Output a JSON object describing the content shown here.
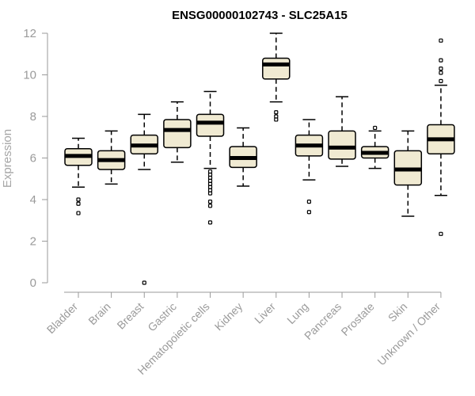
{
  "chart_data": {
    "type": "box",
    "title": "ENSG00000102743 - SLC25A15",
    "xlabel": "",
    "ylabel": "Expression",
    "ylim": [
      0,
      12
    ],
    "yticks": [
      0,
      2,
      4,
      6,
      8,
      10,
      12
    ],
    "grid": false,
    "legend": "none",
    "colors": {
      "box_fill": "#f0ead2",
      "box_stroke": "#000000",
      "axis": "#9a9a9a"
    },
    "categories": [
      "Bladder",
      "Brain",
      "Breast",
      "Gastric",
      "Hematopoietic cells",
      "Kidney",
      "Liver",
      "Lung",
      "Pancreas",
      "Prostate",
      "Skin",
      "Unknown / Other"
    ],
    "boxes": [
      {
        "category": "Bladder",
        "whisker_low": 4.6,
        "q1": 5.65,
        "median": 6.1,
        "q3": 6.45,
        "whisker_high": 6.95,
        "outliers": [
          4.0,
          3.8,
          3.35
        ]
      },
      {
        "category": "Brain",
        "whisker_low": 4.75,
        "q1": 5.45,
        "median": 5.9,
        "q3": 6.35,
        "whisker_high": 7.3,
        "outliers": []
      },
      {
        "category": "Breast",
        "whisker_low": 5.45,
        "q1": 6.2,
        "median": 6.6,
        "q3": 7.1,
        "whisker_high": 8.1,
        "outliers": [
          0.0
        ]
      },
      {
        "category": "Gastric",
        "whisker_low": 5.8,
        "q1": 6.5,
        "median": 7.35,
        "q3": 7.85,
        "whisker_high": 8.7,
        "outliers": []
      },
      {
        "category": "Hematopoietic cells",
        "whisker_low": 5.5,
        "q1": 7.05,
        "median": 7.7,
        "q3": 8.1,
        "whisker_high": 9.2,
        "outliers": [
          5.35,
          5.2,
          5.05,
          4.9,
          4.75,
          4.6,
          4.45,
          4.3,
          3.9,
          3.7,
          2.9
        ]
      },
      {
        "category": "Kidney",
        "whisker_low": 4.65,
        "q1": 5.55,
        "median": 6.0,
        "q3": 6.55,
        "whisker_high": 7.45,
        "outliers": []
      },
      {
        "category": "Liver",
        "whisker_low": 8.7,
        "q1": 9.8,
        "median": 10.5,
        "q3": 10.8,
        "whisker_high": 12.0,
        "outliers": [
          8.2,
          8.0,
          7.85
        ]
      },
      {
        "category": "Lung",
        "whisker_low": 4.95,
        "q1": 6.1,
        "median": 6.6,
        "q3": 7.1,
        "whisker_high": 7.85,
        "outliers": [
          3.9,
          3.4
        ]
      },
      {
        "category": "Pancreas",
        "whisker_low": 5.6,
        "q1": 5.95,
        "median": 6.5,
        "q3": 7.3,
        "whisker_high": 8.95,
        "outliers": []
      },
      {
        "category": "Prostate",
        "whisker_low": 5.5,
        "q1": 6.0,
        "median": 6.25,
        "q3": 6.55,
        "whisker_high": 7.3,
        "outliers": [
          7.45
        ]
      },
      {
        "category": "Skin",
        "whisker_low": 3.2,
        "q1": 4.7,
        "median": 5.45,
        "q3": 6.35,
        "whisker_high": 7.3,
        "outliers": []
      },
      {
        "category": "Unknown / Other",
        "whisker_low": 4.2,
        "q1": 6.2,
        "median": 6.9,
        "q3": 7.6,
        "whisker_high": 9.5,
        "outliers": [
          9.7,
          10.1,
          10.3,
          10.7,
          11.65,
          2.35
        ]
      }
    ]
  }
}
